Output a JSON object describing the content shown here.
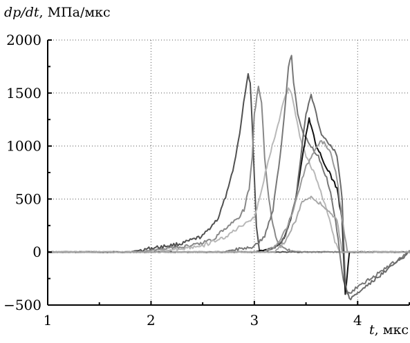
{
  "chart_data": {
    "type": "line",
    "ylabel_var": "dp/dt",
    "ylabel_unit": "МПа/мкс",
    "xlabel_var": "t",
    "xlabel_unit": "мкс",
    "xlim": [
      1,
      4.5
    ],
    "ylim": [
      -500,
      2000
    ],
    "xticks": [
      1,
      2,
      3,
      4
    ],
    "xtick_labels": [
      "1",
      "2",
      "3",
      "4"
    ],
    "yticks": [
      -500,
      0,
      500,
      1000,
      1500,
      2000
    ],
    "ytick_labels": [
      "−500",
      "0",
      "500",
      "1000",
      "1500",
      "2000"
    ],
    "grid": true,
    "series": [
      {
        "color": "#505050",
        "x": [
          1.0,
          1.8,
          1.9,
          2.1,
          2.3,
          2.5,
          2.65,
          2.75,
          2.82,
          2.87,
          2.91,
          2.94,
          2.96,
          2.98,
          3.0,
          3.02,
          3.05,
          3.1,
          4.5
        ],
        "y": [
          0,
          0,
          20,
          50,
          80,
          150,
          320,
          600,
          900,
          1200,
          1500,
          1680,
          1600,
          1200,
          700,
          250,
          20,
          0,
          0
        ]
      },
      {
        "color": "#888888",
        "x": [
          1.0,
          1.9,
          2.1,
          2.4,
          2.6,
          2.75,
          2.85,
          2.9,
          2.95,
          2.98,
          3.0,
          3.04,
          3.07,
          3.1,
          3.14,
          3.18,
          3.22,
          3.28,
          3.35,
          3.5,
          4.5
        ],
        "y": [
          0,
          0,
          30,
          60,
          120,
          250,
          330,
          400,
          600,
          900,
          1300,
          1560,
          1400,
          900,
          500,
          250,
          100,
          40,
          10,
          0,
          0
        ]
      },
      {
        "color": "#b8b8b8",
        "x": [
          1.0,
          2.0,
          2.2,
          2.5,
          2.7,
          2.85,
          2.95,
          3.0,
          3.05,
          3.12,
          3.2,
          3.28,
          3.33,
          3.36,
          3.4,
          3.44,
          3.5,
          3.6,
          3.7,
          3.78,
          3.82,
          4.5
        ],
        "y": [
          0,
          0,
          20,
          60,
          130,
          230,
          300,
          330,
          500,
          800,
          1100,
          1400,
          1550,
          1500,
          1300,
          1100,
          900,
          700,
          400,
          100,
          0,
          0
        ]
      },
      {
        "color": "#777777",
        "x": [
          1.0,
          2.7,
          2.8,
          3.0,
          3.1,
          3.18,
          3.25,
          3.3,
          3.33,
          3.36,
          3.38,
          3.42,
          3.48,
          3.55,
          3.62,
          3.7,
          3.75,
          3.8,
          3.85,
          3.9,
          4.5
        ],
        "y": [
          0,
          0,
          20,
          50,
          150,
          400,
          900,
          1400,
          1750,
          1870,
          1600,
          1300,
          1100,
          1000,
          900,
          700,
          500,
          200,
          -200,
          -400,
          0
        ]
      },
      {
        "color": "#111111",
        "x": [
          1.0,
          3.0,
          3.15,
          3.25,
          3.3,
          3.35,
          3.4,
          3.45,
          3.5,
          3.53,
          3.55,
          3.6,
          3.65,
          3.7,
          3.75,
          3.8,
          3.85,
          3.88,
          3.92,
          4.5
        ],
        "y": [
          0,
          0,
          30,
          80,
          150,
          300,
          500,
          800,
          1100,
          1250,
          1200,
          1000,
          900,
          800,
          700,
          600,
          300,
          -400,
          0,
          0
        ]
      },
      {
        "color": "#6a6a6a",
        "x": [
          1.0,
          3.1,
          3.2,
          3.3,
          3.4,
          3.45,
          3.5,
          3.55,
          3.6,
          3.65,
          3.7,
          3.75,
          3.8,
          3.85,
          3.88,
          3.92,
          4.5
        ],
        "y": [
          0,
          0,
          40,
          150,
          500,
          900,
          1300,
          1480,
          1300,
          1100,
          1050,
          1000,
          900,
          500,
          -300,
          -450,
          0
        ]
      },
      {
        "color": "#999999",
        "x": [
          1.0,
          3.1,
          3.2,
          3.3,
          3.38,
          3.45,
          3.5,
          3.55,
          3.6,
          3.65,
          3.7,
          3.75,
          3.8,
          3.85,
          3.9,
          4.5
        ],
        "y": [
          0,
          0,
          50,
          200,
          400,
          650,
          800,
          900,
          1000,
          1050,
          1000,
          900,
          700,
          300,
          0,
          0
        ]
      },
      {
        "color": "#a8a8a8",
        "x": [
          1.0,
          3.2,
          3.3,
          3.4,
          3.45,
          3.5,
          3.55,
          3.6,
          3.65,
          3.7,
          3.75,
          3.8,
          3.85,
          4.5
        ],
        "y": [
          0,
          0,
          100,
          300,
          450,
          500,
          520,
          480,
          450,
          400,
          350,
          300,
          0,
          0
        ]
      }
    ]
  }
}
